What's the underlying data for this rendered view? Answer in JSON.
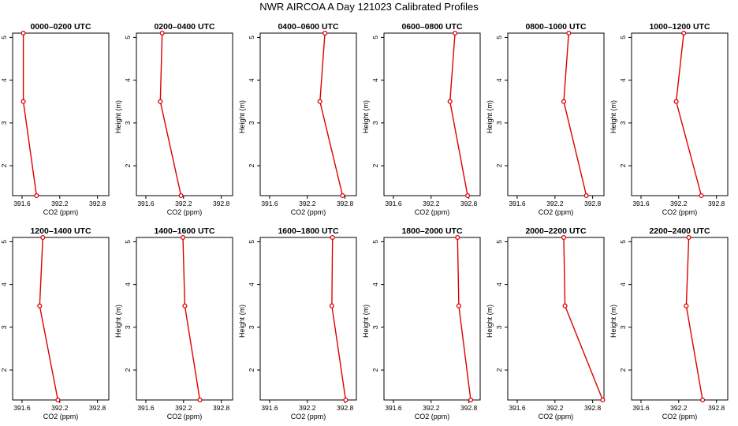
{
  "title": "NWR AIRCOA A  Day 121023  Calibrated Profiles",
  "colors": {
    "series": "#dd0000",
    "axis": "#000000"
  },
  "chart_data": [
    {
      "type": "line",
      "title": "0000–0200 UTC",
      "xlabel": "CO2 (ppm)",
      "ylabel": "Height (m)",
      "xlim": [
        391.45,
        392.98
      ],
      "ylim": [
        1.3,
        5.1
      ],
      "xticks": [
        391.6,
        392.2,
        392.8
      ],
      "yticks": [
        2,
        3,
        4,
        5
      ],
      "x": [
        391.83,
        391.62,
        391.62
      ],
      "y": [
        1.3,
        3.5,
        5.1
      ]
    },
    {
      "type": "line",
      "title": "0200–0400 UTC",
      "xlabel": "CO2 (ppm)",
      "ylabel": "Height (m)",
      "xlim": [
        391.45,
        392.98
      ],
      "ylim": [
        1.3,
        5.1
      ],
      "xticks": [
        391.6,
        392.2,
        392.8
      ],
      "yticks": [
        2,
        3,
        4,
        5
      ],
      "x": [
        392.16,
        391.83,
        391.86
      ],
      "y": [
        1.3,
        3.5,
        5.1
      ]
    },
    {
      "type": "line",
      "title": "0400–0600 UTC",
      "xlabel": "CO2 (ppm)",
      "ylabel": "Height (m)",
      "xlim": [
        391.45,
        392.98
      ],
      "ylim": [
        1.3,
        5.1
      ],
      "xticks": [
        391.6,
        392.2,
        392.8
      ],
      "yticks": [
        2,
        3,
        4,
        5
      ],
      "x": [
        392.76,
        392.4,
        392.48
      ],
      "y": [
        1.3,
        3.5,
        5.1
      ]
    },
    {
      "type": "line",
      "title": "0600–0800 UTC",
      "xlabel": "CO2 (ppm)",
      "ylabel": "Height (m)",
      "xlim": [
        391.45,
        392.98
      ],
      "ylim": [
        1.3,
        5.1
      ],
      "xticks": [
        391.6,
        392.2,
        392.8
      ],
      "yticks": [
        2,
        3,
        4,
        5
      ],
      "x": [
        392.78,
        392.5,
        392.58
      ],
      "y": [
        1.3,
        3.5,
        5.1
      ]
    },
    {
      "type": "line",
      "title": "0800–1000 UTC",
      "xlabel": "CO2 (ppm)",
      "ylabel": "Height (m)",
      "xlim": [
        391.45,
        392.98
      ],
      "ylim": [
        1.3,
        5.1
      ],
      "xticks": [
        391.6,
        392.2,
        392.8
      ],
      "yticks": [
        2,
        3,
        4,
        5
      ],
      "x": [
        392.7,
        392.34,
        392.42
      ],
      "y": [
        1.3,
        3.5,
        5.1
      ]
    },
    {
      "type": "line",
      "title": "1000–1200 UTC",
      "xlabel": "CO2 (ppm)",
      "ylabel": "Height (m)",
      "xlim": [
        391.45,
        392.98
      ],
      "ylim": [
        1.3,
        5.1
      ],
      "xticks": [
        391.6,
        392.2,
        392.8
      ],
      "yticks": [
        2,
        3,
        4,
        5
      ],
      "x": [
        392.56,
        392.16,
        392.28
      ],
      "y": [
        1.3,
        3.5,
        5.1
      ]
    },
    {
      "type": "line",
      "title": "1200–1400 UTC",
      "xlabel": "CO2 (ppm)",
      "ylabel": "Height (m)",
      "xlim": [
        391.45,
        392.98
      ],
      "ylim": [
        1.3,
        5.1
      ],
      "xticks": [
        391.6,
        392.2,
        392.8
      ],
      "yticks": [
        2,
        3,
        4,
        5
      ],
      "x": [
        392.17,
        391.88,
        391.93
      ],
      "y": [
        1.3,
        3.5,
        5.1
      ]
    },
    {
      "type": "line",
      "title": "1400–1600 UTC",
      "xlabel": "CO2 (ppm)",
      "ylabel": "Height (m)",
      "xlim": [
        391.45,
        392.98
      ],
      "ylim": [
        1.3,
        5.1
      ],
      "xticks": [
        391.6,
        392.2,
        392.8
      ],
      "yticks": [
        2,
        3,
        4,
        5
      ],
      "x": [
        392.46,
        392.22,
        392.19
      ],
      "y": [
        1.3,
        3.5,
        5.1
      ]
    },
    {
      "type": "line",
      "title": "1600–1800 UTC",
      "xlabel": "CO2 (ppm)",
      "ylabel": "Height (m)",
      "xlim": [
        391.45,
        392.98
      ],
      "ylim": [
        1.3,
        5.1
      ],
      "xticks": [
        391.6,
        392.2,
        392.8
      ],
      "yticks": [
        2,
        3,
        4,
        5
      ],
      "x": [
        392.81,
        392.59,
        392.6
      ],
      "y": [
        1.3,
        3.5,
        5.1
      ]
    },
    {
      "type": "line",
      "title": "1800–2000 UTC",
      "xlabel": "CO2 (ppm)",
      "ylabel": "Height (m)",
      "xlim": [
        391.45,
        392.98
      ],
      "ylim": [
        1.3,
        5.1
      ],
      "xticks": [
        391.6,
        392.2,
        392.8
      ],
      "yticks": [
        2,
        3,
        4,
        5
      ],
      "x": [
        392.83,
        392.64,
        392.62
      ],
      "y": [
        1.3,
        3.5,
        5.1
      ]
    },
    {
      "type": "line",
      "title": "2000–2200 UTC",
      "xlabel": "CO2 (ppm)",
      "ylabel": "Height (m)",
      "xlim": [
        391.45,
        392.98
      ],
      "ylim": [
        1.3,
        5.1
      ],
      "xticks": [
        391.6,
        392.2,
        392.8
      ],
      "yticks": [
        2,
        3,
        4,
        5
      ],
      "x": [
        392.96,
        392.36,
        392.34
      ],
      "y": [
        1.3,
        3.5,
        5.1
      ]
    },
    {
      "type": "line",
      "title": "2200–2400 UTC",
      "xlabel": "CO2 (ppm)",
      "ylabel": "Height (m)",
      "xlim": [
        391.45,
        392.98
      ],
      "ylim": [
        1.3,
        5.1
      ],
      "xticks": [
        391.6,
        392.2,
        392.8
      ],
      "yticks": [
        2,
        3,
        4,
        5
      ],
      "x": [
        392.58,
        392.32,
        392.36
      ],
      "y": [
        1.3,
        3.5,
        5.1
      ]
    }
  ]
}
